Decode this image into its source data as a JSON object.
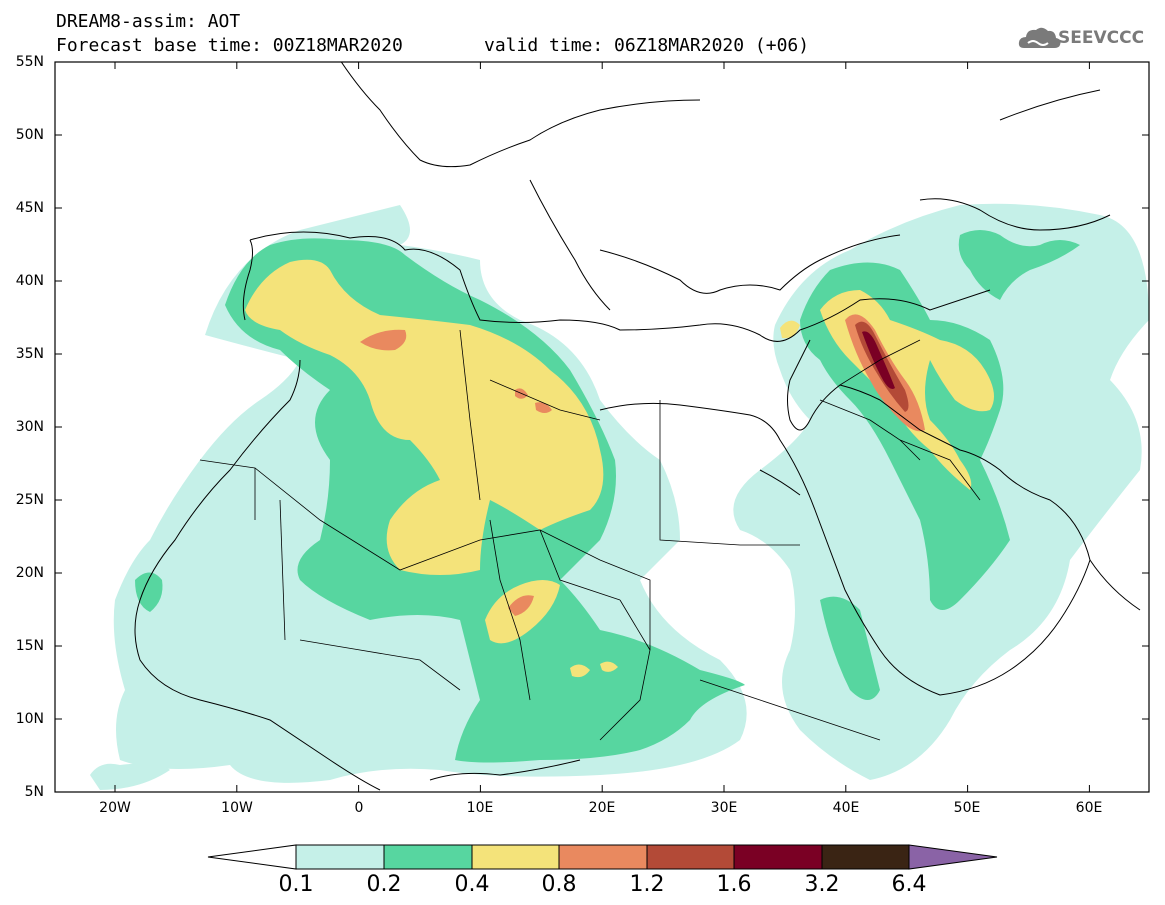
{
  "header": {
    "title_line1": "DREAM8-assim: AOT",
    "base_time": "Forecast base time: 00Z18MAR2020",
    "valid_time": "valid time: 06Z18MAR2020 (+06)"
  },
  "logo": {
    "text": "SEEVCCC",
    "icon": "cloud-icon"
  },
  "axes": {
    "lat_labels": [
      "55N",
      "50N",
      "45N",
      "40N",
      "35N",
      "30N",
      "25N",
      "20N",
      "15N",
      "10N",
      "5N"
    ],
    "lon_labels": [
      "20W",
      "10W",
      "0",
      "10E",
      "20E",
      "30E",
      "40E",
      "50E",
      "60E"
    ]
  },
  "colorbar": {
    "labels": [
      "0.1",
      "0.2",
      "0.4",
      "0.8",
      "1.2",
      "1.6",
      "3.2",
      "6.4"
    ],
    "colors": {
      "below": "#ffffff",
      "c1": "#c5f0e8",
      "c2": "#57d6a0",
      "c3": "#f4e37a",
      "c4": "#e9895f",
      "c5": "#b34a37",
      "c6": "#7a0024",
      "c7": "#3a2414",
      "above": "#8a63a6"
    }
  }
}
